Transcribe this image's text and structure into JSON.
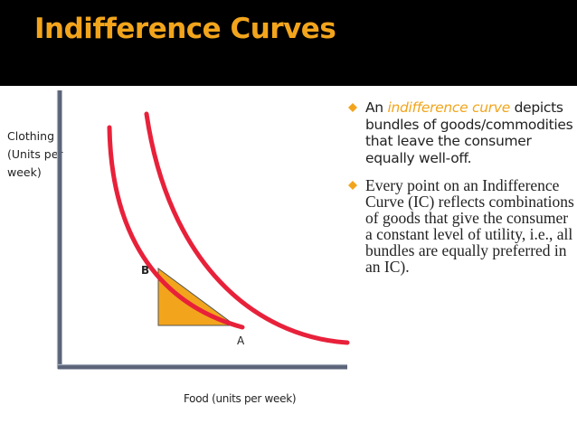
{
  "title": "Indifference Curves",
  "axes": {
    "y_label": "Clothing (Units per week)",
    "x_label": "Food (units per week)"
  },
  "points": {
    "b": "B",
    "a": "A"
  },
  "bullets": [
    {
      "pre": "An ",
      "highlight": "indifference curve",
      "post": " depicts bundles of goods/commodities that leave the consumer equally well-off."
    },
    {
      "text": "Every point on an Indifference Curve (IC) reflects  combinations of goods that give the consumer a constant level of utility, i.e., all bundles are equally preferred in an IC)."
    }
  ],
  "colors": {
    "title": "#f2a51c",
    "header_background": "#000000",
    "curve": "#e8213a",
    "triangle": "#f2a51c",
    "axis": "#5b6478",
    "bullet_marker": "#f2a51c",
    "highlight": "#f2a51c"
  },
  "icons": {
    "bullet": "diamond-bullet-icon"
  }
}
